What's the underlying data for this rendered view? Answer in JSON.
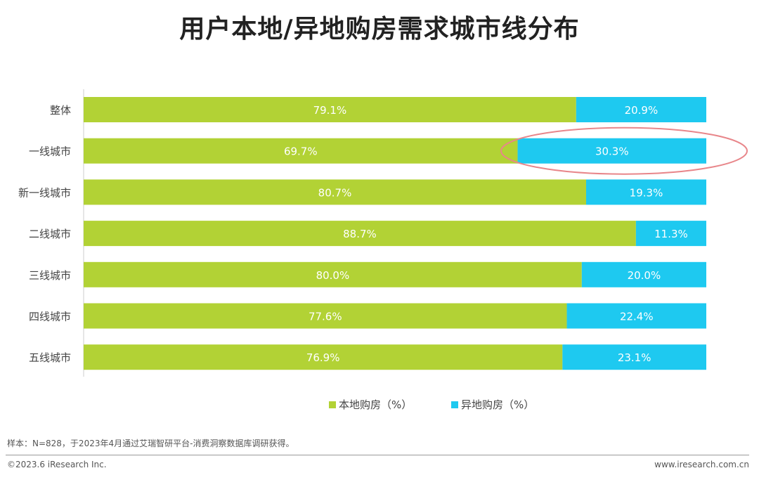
{
  "chart_data": {
    "type": "bar",
    "stacked": true,
    "orientation": "horizontal",
    "title": "用户本地/异地购房需求城市线分布",
    "categories": [
      "整体",
      "一线城市",
      "新一线城市",
      "二线城市",
      "三线城市",
      "四线城市",
      "五线城市"
    ],
    "series": [
      {
        "name": "本地购房（%）",
        "color": "#b2d235",
        "values": [
          79.1,
          69.7,
          80.7,
          88.7,
          80.0,
          77.6,
          76.9
        ],
        "labels": [
          "79.1%",
          "69.7%",
          "80.7%",
          "88.7%",
          "80.0%",
          "77.6%",
          "76.9%"
        ]
      },
      {
        "name": "异地购房（%）",
        "color": "#1ec9f0",
        "values": [
          20.9,
          30.3,
          19.3,
          11.3,
          20.0,
          22.4,
          23.1
        ],
        "labels": [
          "20.9%",
          "30.3%",
          "19.3%",
          "11.3%",
          "20.0%",
          "22.4%",
          "23.1%"
        ]
      }
    ],
    "xlim": [
      0,
      100
    ],
    "legend": "bottom",
    "highlight": {
      "category": "一线城市",
      "series": "异地购房（%）",
      "color": "#e8868a"
    }
  },
  "footer": {
    "note": "样本：N=828，于2023年4月通过艾瑞智研平台-消费洞察数据库调研获得。",
    "copyright": "©2023.6 iResearch Inc.",
    "site": "www.iresearch.com.cn"
  }
}
